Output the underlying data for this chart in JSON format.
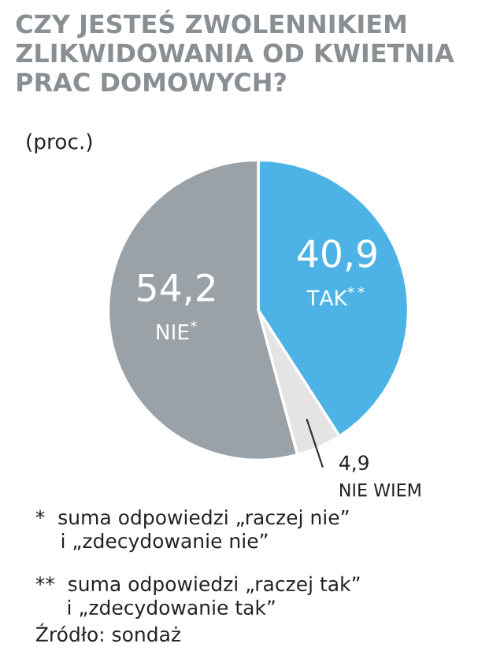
{
  "chart_data": {
    "type": "pie",
    "title": "CZY JESTEŚ ZWOLENNIKIEM ZLIKWIDOWANIA OD KWIETNIA PRAC DOMOWYCH?",
    "subtitle": "(proc.)",
    "categories": [
      "TAK$^{**}$",
      "NIE WIEM",
      "NIE$^{*}$"
    ],
    "values": [
      40.9,
      4.9,
      54.2
    ],
    "value_labels": [
      "40,9",
      "4,9",
      "54,2"
    ],
    "colors": [
      "#4db3e6",
      "#e4e4e4",
      "#9aa1a7"
    ],
    "annotations": [
      "*  suma odpowiedzi „raczej nie”\n    i „zdecydowanie nie”",
      "**  suma odpowiedzi „raczej tak”\n     i „zdecydowanie tak”",
      "Źródło: sondaż"
    ]
  }
}
